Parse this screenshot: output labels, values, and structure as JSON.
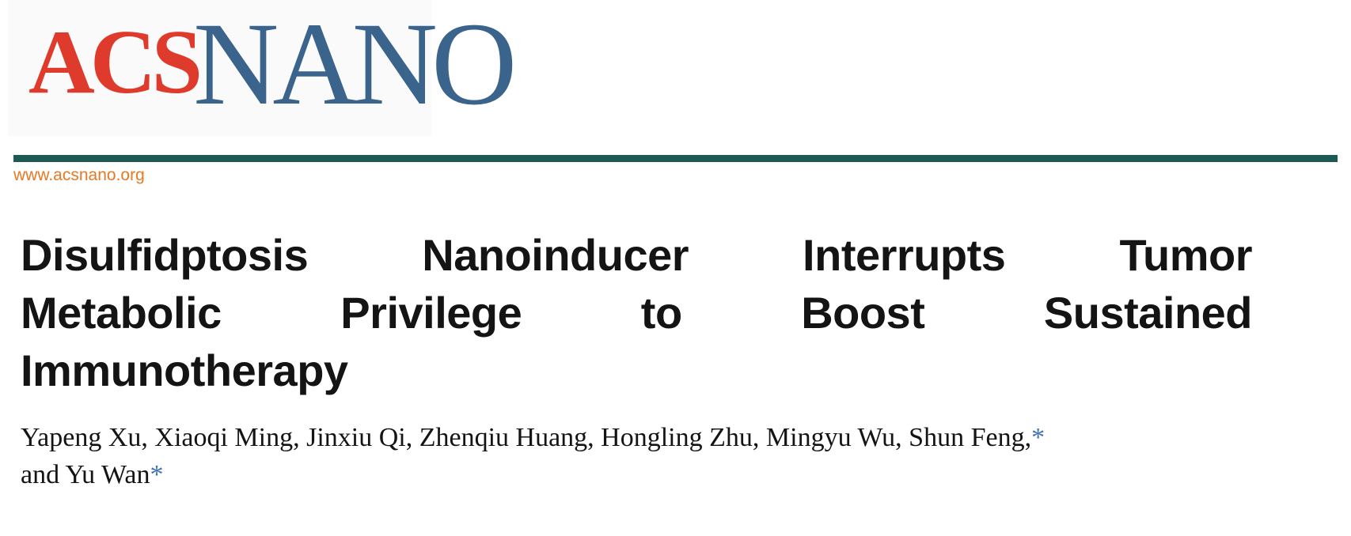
{
  "brand": {
    "logo_acs": "ACS",
    "logo_nano": "NANO",
    "website": "www.acsnano.org"
  },
  "colors": {
    "acs_red": "#de3b2d",
    "nano_blue": "#3a648c",
    "rule_teal": "#1e5a54",
    "website_orange": "#e87824",
    "asterisk_blue": "#3f73b3"
  },
  "article": {
    "title_lines": {
      "0": "Disulfidptosis Nanoinducer Interrupts Tumor",
      "1": "Metabolic Privilege to Boost Sustained",
      "2": "Immunotherapy"
    },
    "authors": {
      "line1_text": "Yapeng Xu, Xiaoqi Ming, Jinxiu Qi, Zhenqiu Huang, Hongling Zhu, Mingyu Wu, Shun Feng,",
      "line1_mark": "*",
      "line2_text": "and Yu Wan",
      "line2_mark": "*"
    }
  }
}
